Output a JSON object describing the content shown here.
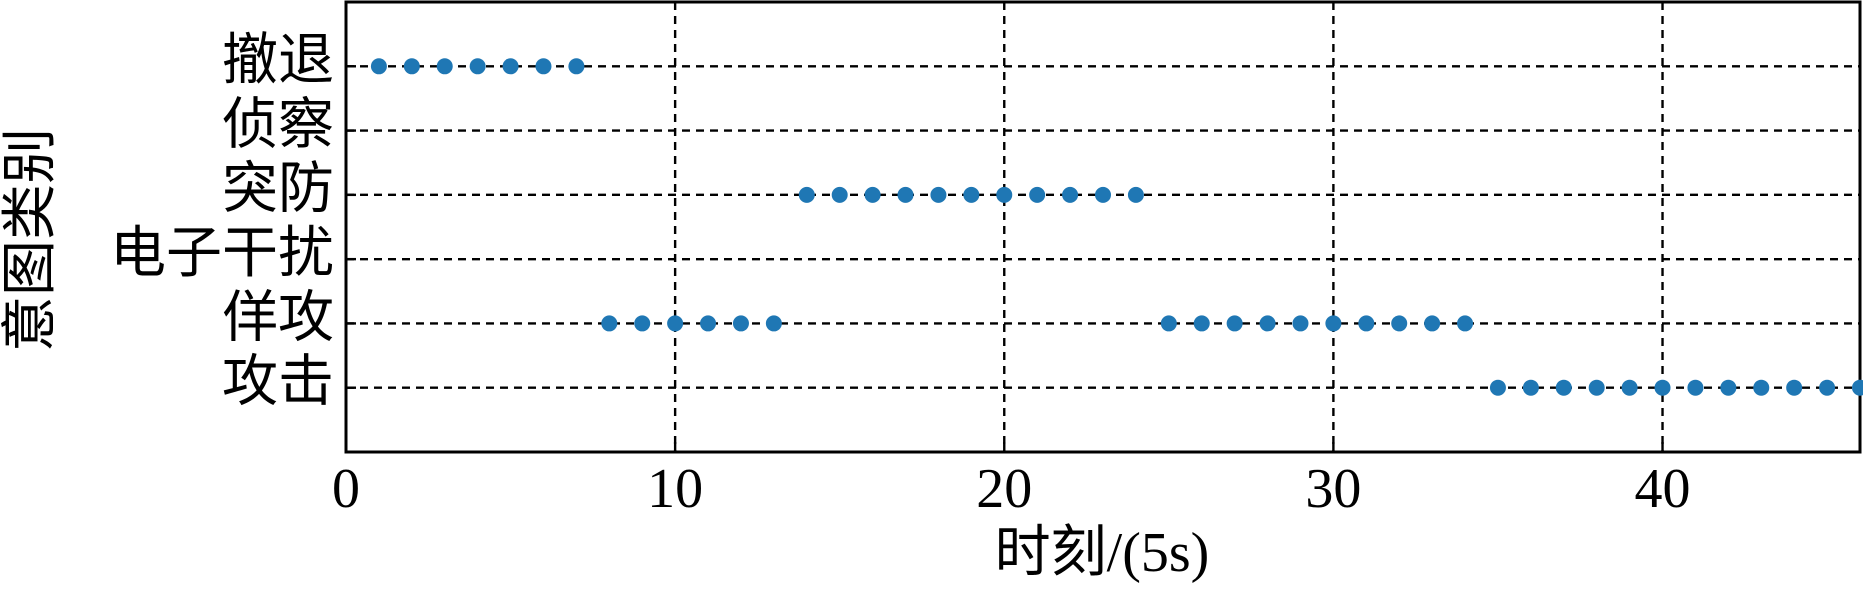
{
  "chart_data": {
    "type": "scatter",
    "x_label": "时刻/(5s)",
    "y_label": "意图类别",
    "x": [
      1,
      2,
      3,
      4,
      5,
      6,
      7,
      8,
      9,
      10,
      11,
      12,
      13,
      14,
      15,
      16,
      17,
      18,
      19,
      20,
      21,
      22,
      23,
      24,
      25,
      26,
      27,
      28,
      29,
      30,
      31,
      32,
      33,
      34,
      35,
      36,
      37,
      38,
      39,
      40,
      41,
      42,
      43,
      44,
      45,
      46
    ],
    "values": [
      5,
      5,
      5,
      5,
      5,
      5,
      5,
      1,
      1,
      1,
      1,
      1,
      1,
      3,
      3,
      3,
      3,
      3,
      3,
      3,
      3,
      3,
      3,
      3,
      1,
      1,
      1,
      1,
      1,
      1,
      1,
      1,
      1,
      1,
      0,
      0,
      0,
      0,
      0,
      0,
      0,
      0,
      0,
      0,
      0,
      0
    ],
    "color": "#1f77b4",
    "xlim": [
      0,
      46
    ],
    "xticks": [
      0,
      10,
      20,
      30,
      40
    ],
    "ylim": [
      -1,
      6
    ],
    "yticks": [
      {
        "value": 0,
        "label": "攻击"
      },
      {
        "value": 1,
        "label": "佯攻"
      },
      {
        "value": 2,
        "label": "电子干扰"
      },
      {
        "value": 3,
        "label": "突防"
      },
      {
        "value": 4,
        "label": "侦察"
      },
      {
        "value": 5,
        "label": "撤退"
      }
    ],
    "grid": true
  }
}
